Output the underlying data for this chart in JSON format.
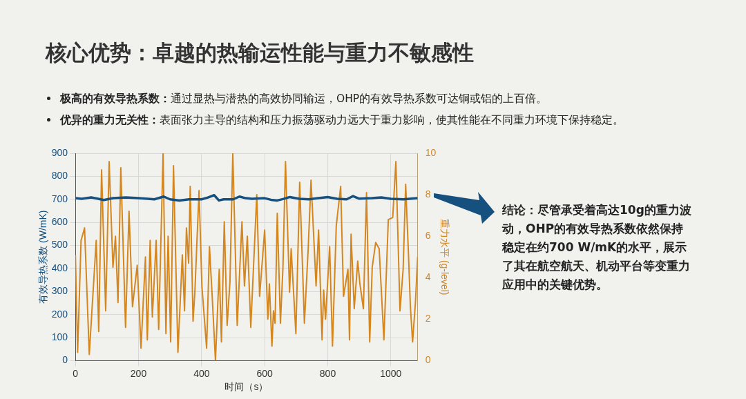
{
  "chart_data": {
    "type": "line",
    "title": "核心优势：卓越的热输运性能与重力不敏感性",
    "xlabel": "时间（s）",
    "ylabel": "有效导热系数 (W/mK)",
    "y2label": "重力水平 (g-level)",
    "annotations": [
      "极高的有效导热系数：通过显热与潜热的高效协同输运，OHP的有效导热系数可达铜或铝的上百倍。",
      "优异的重力无关性：表面张力主导的结构和压力振荡驱动力远大于重力影响，使其性能在不同重力环境下保持稳定。",
      "结论：尽管承受着高达10g的重力波动，OHP的有效导热系数依然保持稳定在约700 W/mK的水平，展示了其在航空航天、机动平台等变重力应用中的关键优势。"
    ],
    "series": [
      {
        "color": "#15507f",
        "x": [
          0,
          20,
          50,
          70,
          90,
          120,
          160,
          200,
          230,
          250,
          280,
          300,
          330,
          360,
          400,
          420,
          440,
          455,
          470,
          500,
          520,
          540,
          560,
          600,
          620,
          640,
          660,
          680,
          710,
          740,
          770,
          800,
          830,
          860,
          880,
          900,
          940,
          970,
          1000,
          1040,
          1085
        ],
        "values": [
          705,
          702,
          708,
          703,
          697,
          705,
          708,
          705,
          702,
          700,
          712,
          700,
          695,
          700,
          700,
          708,
          718,
          695,
          700,
          700,
          712,
          705,
          702,
          705,
          698,
          695,
          702,
          710,
          702,
          700,
          705,
          710,
          702,
          700,
          714,
          703,
          705,
          708,
          702,
          700,
          705
        ]
      },
      {
        "axis": "y2",
        "color": "#d4861f",
        "x": [
          0,
          7,
          18,
          29,
          44,
          66,
          74,
          83,
          96,
          107,
          119,
          127,
          135,
          144,
          159,
          170,
          181,
          196,
          208,
          222,
          228,
          237,
          244,
          256,
          264,
          278,
          287,
          294,
          302,
          311,
          325,
          339,
          346,
          352,
          359,
          364,
          373,
          379,
          392,
          401,
          416,
          425,
          433,
          444,
          456,
          463,
          472,
          481,
          490,
          499,
          513,
          528,
          536,
          545,
          556,
          575,
          584,
          600,
          610,
          615,
          623,
          628,
          633,
          640,
          650,
          658,
          666,
          679,
          684,
          699,
          711,
          726,
          738,
          747,
          763,
          771,
          782,
          787,
          793,
          806,
          815,
          827,
          841,
          850,
          864,
          869,
          874,
          884,
          895,
          902,
          913,
          923,
          933,
          941,
          952,
          963,
          978,
          992,
          1006,
          1016,
          1029,
          1039,
          1047,
          1056,
          1062,
          1069,
          1078,
          1085
        ],
        "values": [
          5.1,
          0.4,
          5.8,
          6.4,
          0.3,
          5.8,
          1.4,
          9.2,
          2.4,
          9.6,
          4.5,
          6.0,
          2.8,
          9.3,
          1.6,
          7.2,
          2.6,
          4.6,
          0.6,
          5.0,
          1.0,
          5.8,
          2.1,
          5.8,
          1.5,
          10,
          1.3,
          6.0,
          0.9,
          9.4,
          0.4,
          5.1,
          2.4,
          6.4,
          4.7,
          8.4,
          1.9,
          3.4,
          8.2,
          3.6,
          0.6,
          5.5,
          3.3,
          0,
          4.4,
          0.9,
          6.7,
          1.7,
          3.8,
          10,
          1.7,
          6.7,
          3.6,
          6.0,
          1.6,
          8.0,
          3.1,
          6.3,
          2.0,
          3.7,
          0.7,
          2.4,
          1.8,
          7.1,
          1.8,
          4.5,
          9.6,
          3.3,
          5.4,
          1.3,
          8.6,
          1.8,
          5.4,
          8.7,
          3.6,
          6.3,
          1.0,
          3.4,
          2.0,
          5.5,
          0.7,
          6.5,
          8.4,
          3.1,
          4.4,
          1.0,
          6.1,
          2.5,
          4.8,
          3.7,
          2.5,
          8.1,
          0.9,
          4.5,
          5.7,
          5.4,
          1.0,
          6.8,
          6.9,
          9.6,
          2.4,
          4.4,
          8.5,
          5.1,
          2.6,
          0.9,
          2.8,
          5.0
        ]
      }
    ],
    "xlim": [
      0,
      1085
    ],
    "xticks": [
      0,
      200,
      400,
      600,
      800,
      1000
    ],
    "ylim": [
      0,
      900
    ],
    "yticks": [
      0,
      100,
      200,
      300,
      400,
      500,
      600,
      700,
      800,
      900
    ],
    "y2lim": [
      0,
      10
    ],
    "y2ticks": [
      0,
      2,
      4,
      6,
      8,
      10
    ],
    "grid": true,
    "legend": false,
    "marker": "none",
    "line_style": "solid"
  }
}
